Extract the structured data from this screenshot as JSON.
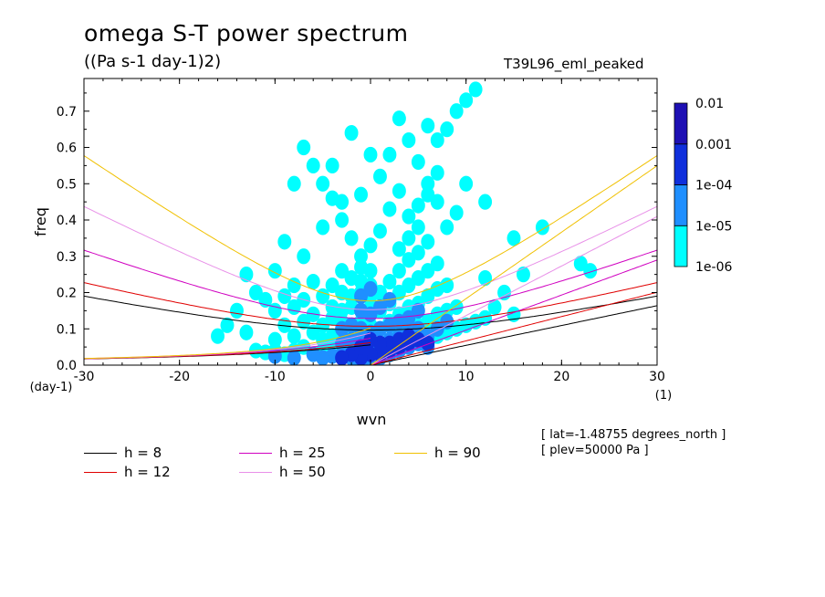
{
  "figure": {
    "title": "omega S-T power spectrum",
    "units": "((Pa s-1 day-1)2)",
    "run_name": "T39L96_eml_peaked",
    "info": [
      "[ lat=-1.48755 degrees_north ]",
      "[ plev=50000 Pa ]"
    ]
  },
  "chart_data": {
    "type": "heatmap",
    "title": "omega S-T power spectrum",
    "subtitle": "((Pa s-1 day-1)2)",
    "xlabel": "wvn",
    "ylabel": "freq",
    "x_unit_label": "(1)",
    "y_unit_label": "(day-1)",
    "xlim": [
      -30,
      30
    ],
    "ylim": [
      0,
      0.79
    ],
    "x_ticks": [
      -30,
      -20,
      -10,
      0,
      10,
      20,
      30
    ],
    "x_tick_labels": [
      "-30",
      "-20",
      "-10",
      "0",
      "10",
      "20",
      "30"
    ],
    "y_ticks": [
      0.0,
      0.1,
      0.2,
      0.3,
      0.4,
      0.5,
      0.6,
      0.7
    ],
    "y_tick_labels": [
      "0.0",
      "0.1",
      "0.2",
      "0.3",
      "0.4",
      "0.5",
      "0.6",
      "0.7"
    ],
    "colorbar": {
      "levels": [
        "1e-06",
        "1e-05",
        "1e-04",
        "0.001",
        "0.01"
      ],
      "colors": [
        "#00ffff",
        "#1f8fff",
        "#0f2fdc",
        "#1e10b4"
      ]
    },
    "power_cells": [
      [
        -12,
        0.04,
        1
      ],
      [
        -11,
        0.035,
        1
      ],
      [
        -10,
        0.04,
        1
      ],
      [
        -9,
        0.03,
        1
      ],
      [
        -8,
        0.04,
        1
      ],
      [
        -7,
        0.05,
        1
      ],
      [
        -6,
        0.03,
        1
      ],
      [
        -5,
        0.04,
        1
      ],
      [
        -4,
        0.05,
        1
      ],
      [
        -3,
        0.04,
        1
      ],
      [
        -2,
        0.04,
        1
      ],
      [
        -1,
        0.03,
        1
      ],
      [
        -10,
        0.07,
        1
      ],
      [
        -8,
        0.08,
        1
      ],
      [
        -6,
        0.09,
        1
      ],
      [
        -5,
        0.07,
        1
      ],
      [
        -4,
        0.08,
        1
      ],
      [
        -3,
        0.07,
        1
      ],
      [
        -2,
        0.08,
        1
      ],
      [
        -1,
        0.07,
        1
      ],
      [
        0,
        0.06,
        1
      ],
      [
        -9,
        0.11,
        1
      ],
      [
        -7,
        0.12,
        1
      ],
      [
        -5,
        0.11,
        1
      ],
      [
        -4,
        0.13,
        1
      ],
      [
        -3,
        0.12,
        1
      ],
      [
        -2,
        0.11,
        1
      ],
      [
        -1,
        0.12,
        1
      ],
      [
        0,
        0.11,
        1
      ],
      [
        -10,
        0.15,
        1
      ],
      [
        -8,
        0.16,
        1
      ],
      [
        -6,
        0.14,
        1
      ],
      [
        -4,
        0.16,
        1
      ],
      [
        -3,
        0.15,
        1
      ],
      [
        -2,
        0.16,
        1
      ],
      [
        -1,
        0.15,
        1
      ],
      [
        0,
        0.16,
        1
      ],
      [
        -11,
        0.18,
        1
      ],
      [
        -9,
        0.19,
        1
      ],
      [
        -7,
        0.18,
        1
      ],
      [
        -5,
        0.19,
        1
      ],
      [
        -3,
        0.2,
        1
      ],
      [
        -2,
        0.19,
        1
      ],
      [
        -1,
        0.2,
        1
      ],
      [
        0,
        0.19,
        1
      ],
      [
        -8,
        0.22,
        1
      ],
      [
        -6,
        0.23,
        1
      ],
      [
        -4,
        0.22,
        1
      ],
      [
        -2,
        0.24,
        1
      ],
      [
        -1,
        0.23,
        1
      ],
      [
        0,
        0.22,
        1
      ],
      [
        -3,
        0.26,
        1
      ],
      [
        -1,
        0.27,
        1
      ],
      [
        0,
        0.26,
        1
      ],
      [
        1,
        0.02,
        1
      ],
      [
        2,
        0.03,
        1
      ],
      [
        3,
        0.04,
        1
      ],
      [
        4,
        0.05,
        1
      ],
      [
        5,
        0.06,
        1
      ],
      [
        6,
        0.07,
        1
      ],
      [
        7,
        0.08,
        1
      ],
      [
        8,
        0.09,
        1
      ],
      [
        9,
        0.1,
        1
      ],
      [
        10,
        0.11,
        1
      ],
      [
        11,
        0.12,
        1
      ],
      [
        12,
        0.13,
        1
      ],
      [
        1,
        0.06,
        1
      ],
      [
        2,
        0.07,
        1
      ],
      [
        3,
        0.09,
        1
      ],
      [
        4,
        0.1,
        1
      ],
      [
        5,
        0.11,
        1
      ],
      [
        6,
        0.12,
        1
      ],
      [
        7,
        0.14,
        1
      ],
      [
        8,
        0.15,
        1
      ],
      [
        9,
        0.16,
        1
      ],
      [
        1,
        0.1,
        1
      ],
      [
        2,
        0.12,
        1
      ],
      [
        3,
        0.14,
        1
      ],
      [
        4,
        0.16,
        1
      ],
      [
        5,
        0.17,
        1
      ],
      [
        6,
        0.19,
        1
      ],
      [
        7,
        0.21,
        1
      ],
      [
        8,
        0.22,
        1
      ],
      [
        1,
        0.15,
        1
      ],
      [
        2,
        0.17,
        1
      ],
      [
        3,
        0.2,
        1
      ],
      [
        4,
        0.22,
        1
      ],
      [
        5,
        0.24,
        1
      ],
      [
        6,
        0.26,
        1
      ],
      [
        7,
        0.28,
        1
      ],
      [
        1,
        0.2,
        1
      ],
      [
        2,
        0.23,
        1
      ],
      [
        3,
        0.26,
        1
      ],
      [
        4,
        0.29,
        1
      ],
      [
        5,
        0.31,
        1
      ],
      [
        6,
        0.34,
        1
      ],
      [
        3,
        0.32,
        1
      ],
      [
        4,
        0.35,
        1
      ],
      [
        5,
        0.38,
        1
      ],
      [
        4,
        0.41,
        1
      ],
      [
        5,
        0.44,
        1
      ],
      [
        6,
        0.47,
        1
      ],
      [
        6,
        0.5,
        1
      ],
      [
        7,
        0.53,
        1
      ],
      [
        5,
        0.56,
        1
      ],
      [
        7,
        0.62,
        1
      ],
      [
        8,
        0.65,
        1
      ],
      [
        9,
        0.7,
        1
      ],
      [
        10,
        0.73,
        1
      ],
      [
        11,
        0.76,
        1
      ],
      [
        8,
        0.38,
        1
      ],
      [
        9,
        0.42,
        1
      ],
      [
        7,
        0.45,
        1
      ],
      [
        10,
        0.5,
        1
      ],
      [
        -1,
        0.3,
        1
      ],
      [
        0,
        0.33,
        1
      ],
      [
        -2,
        0.35,
        1
      ],
      [
        1,
        0.37,
        1
      ],
      [
        -3,
        0.4,
        1
      ],
      [
        2,
        0.43,
        1
      ],
      [
        -4,
        0.46,
        1
      ],
      [
        3,
        0.48,
        1
      ],
      [
        -5,
        0.5,
        1
      ],
      [
        1,
        0.52,
        1
      ],
      [
        -6,
        0.55,
        1
      ],
      [
        2,
        0.58,
        1
      ],
      [
        -7,
        0.6,
        1
      ],
      [
        4,
        0.62,
        1
      ],
      [
        -10,
        0.26,
        1
      ],
      [
        -13,
        0.25,
        1
      ],
      [
        -12,
        0.2,
        1
      ],
      [
        -14,
        0.15,
        1
      ],
      [
        -15,
        0.11,
        1
      ],
      [
        -16,
        0.08,
        1
      ],
      [
        -13,
        0.09,
        1
      ],
      [
        13,
        0.16,
        1
      ],
      [
        14,
        0.2,
        1
      ],
      [
        12,
        0.24,
        1
      ],
      [
        15,
        0.14,
        1
      ],
      [
        16,
        0.25,
        1
      ],
      [
        22,
        0.28,
        1
      ],
      [
        23,
        0.26,
        1
      ],
      [
        15,
        0.35,
        1
      ],
      [
        18,
        0.38,
        1
      ],
      [
        12,
        0.45,
        1
      ],
      [
        -7,
        0.3,
        1
      ],
      [
        -9,
        0.34,
        1
      ],
      [
        -5,
        0.38,
        1
      ],
      [
        -3,
        0.45,
        1
      ],
      [
        -1,
        0.47,
        1
      ],
      [
        -8,
        0.5,
        1
      ],
      [
        -4,
        0.55,
        1
      ],
      [
        0,
        0.58,
        1
      ],
      [
        3,
        0.68,
        1
      ],
      [
        6,
        0.66,
        1
      ],
      [
        -2,
        0.64,
        1
      ],
      [
        0,
        0.02,
        2
      ],
      [
        1,
        0.02,
        2
      ],
      [
        2,
        0.03,
        2
      ],
      [
        3,
        0.04,
        2
      ],
      [
        4,
        0.05,
        2
      ],
      [
        5,
        0.06,
        2
      ],
      [
        6,
        0.05,
        2
      ],
      [
        -1,
        0.01,
        2
      ],
      [
        -2,
        0.02,
        2
      ],
      [
        -3,
        0.03,
        2
      ],
      [
        -4,
        0.025,
        2
      ],
      [
        -5,
        0.02,
        2
      ],
      [
        -6,
        0.03,
        2
      ],
      [
        -8,
        0.02,
        2
      ],
      [
        -10,
        0.025,
        2
      ],
      [
        0,
        0.05,
        2
      ],
      [
        1,
        0.06,
        2
      ],
      [
        2,
        0.07,
        2
      ],
      [
        3,
        0.08,
        2
      ],
      [
        4,
        0.09,
        2
      ],
      [
        5,
        0.1,
        2
      ],
      [
        -1,
        0.06,
        2
      ],
      [
        -2,
        0.07,
        2
      ],
      [
        -3,
        0.06,
        2
      ],
      [
        1,
        0.1,
        2
      ],
      [
        2,
        0.11,
        2
      ],
      [
        3,
        0.12,
        2
      ],
      [
        4,
        0.13,
        2
      ],
      [
        0,
        0.09,
        2
      ],
      [
        -1,
        0.1,
        2
      ],
      [
        -2,
        0.11,
        2
      ],
      [
        -3,
        0.1,
        2
      ],
      [
        0,
        0.14,
        2
      ],
      [
        -1,
        0.15,
        2
      ],
      [
        1,
        0.16,
        2
      ],
      [
        2,
        0.18,
        2
      ],
      [
        -1,
        0.19,
        2
      ],
      [
        0,
        0.21,
        2
      ],
      [
        5,
        0.15,
        2
      ],
      [
        6,
        0.08,
        2
      ],
      [
        7,
        0.1,
        2
      ],
      [
        8,
        0.12,
        2
      ],
      [
        1,
        0.03,
        3
      ],
      [
        2,
        0.04,
        3
      ],
      [
        3,
        0.05,
        3
      ],
      [
        4,
        0.06,
        3
      ],
      [
        5,
        0.07,
        3
      ],
      [
        6,
        0.06,
        3
      ],
      [
        2,
        0.06,
        3
      ],
      [
        3,
        0.07,
        3
      ],
      [
        4,
        0.08,
        3
      ],
      [
        0,
        0.03,
        3
      ],
      [
        -1,
        0.02,
        3
      ],
      [
        -2,
        0.03,
        3
      ],
      [
        -3,
        0.02,
        3
      ],
      [
        1,
        0.06,
        3
      ],
      [
        0,
        0.07,
        3
      ],
      [
        -1,
        0.05,
        3
      ]
    ],
    "curve_kappa": 0.2857,
    "series": [
      {
        "name": "h =  8",
        "h": 8,
        "color": "#000000"
      },
      {
        "name": "h = 12",
        "h": 12,
        "color": "#e00000"
      },
      {
        "name": "h = 25",
        "h": 25,
        "color": "#d000c0"
      },
      {
        "name": "h = 50",
        "h": 50,
        "color": "#e890e8"
      },
      {
        "name": "h = 90",
        "h": 90,
        "color": "#f0c000"
      }
    ]
  },
  "legend": {
    "items": [
      {
        "label": "h =  8",
        "color": "#000000"
      },
      {
        "label": "h = 12",
        "color": "#e00000"
      },
      {
        "label": "h = 25",
        "color": "#d000c0"
      },
      {
        "label": "h = 50",
        "color": "#e890e8"
      },
      {
        "label": "h = 90",
        "color": "#f0c000"
      }
    ]
  }
}
